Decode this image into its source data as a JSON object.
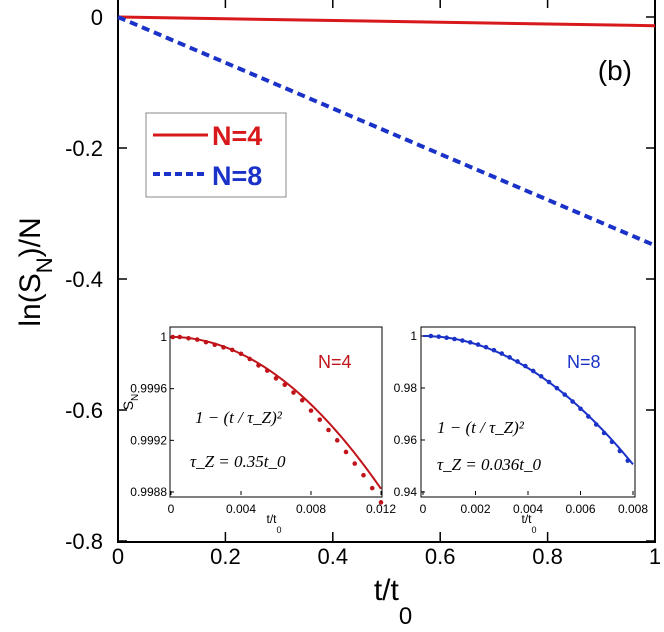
{
  "chart_data": [
    {
      "type": "line",
      "panel_label": "(b)",
      "xlabel": "t/t",
      "xlabel_sub": "0",
      "ylabel": "ln(S",
      "ylabel_sub": "N",
      "ylabel_end": ")/N",
      "xlim": [
        0,
        1
      ],
      "ylim": [
        -0.8,
        0
      ],
      "x_ticks": [
        0,
        0.2,
        0.4,
        0.6,
        0.8,
        1
      ],
      "x_tick_labels": [
        "0",
        "0.2",
        "0.4",
        "0.6",
        "0.8",
        "1"
      ],
      "y_ticks": [
        0,
        -0.2,
        -0.4,
        -0.6,
        -0.8
      ],
      "y_tick_labels": [
        "0",
        "-0.2",
        "-0.4",
        "-0.6",
        "-0.8"
      ],
      "legend_position": "upper-left",
      "series": [
        {
          "name": "N=4",
          "color": "#d7191c",
          "style": "solid",
          "x": [
            0,
            1
          ],
          "y": [
            0,
            -0.0133
          ]
        },
        {
          "name": "N=8",
          "color": "#1a32c8",
          "style": "dashed",
          "x": [
            0,
            1
          ],
          "y": [
            0,
            -0.3488
          ]
        }
      ]
    },
    {
      "type": "line",
      "inset": "left",
      "annotation": "N=4",
      "color": "#c0141a",
      "xlabel": "t/t",
      "xlabel_sub": "0",
      "ylabel": "S",
      "ylabel_sub": "N",
      "formula": "1 − (t / τ_Z)²",
      "tau": "τ_Z = 0.35t_0",
      "xlim": [
        0,
        0.012
      ],
      "ylim": [
        0.9988,
        1
      ],
      "x_ticks": [
        0,
        0.004,
        0.008,
        0.012
      ],
      "x_tick_labels": [
        "0",
        "0.004",
        "0.008",
        "0.012"
      ],
      "y_ticks": [
        0.9988,
        0.9992,
        0.9996,
        1
      ],
      "y_tick_labels": [
        "0.9988",
        "0.9992",
        "0.9996",
        "1"
      ],
      "tau_value": 0.35,
      "points_x": [
        0.0001,
        0.0005,
        0.001,
        0.0015,
        0.002,
        0.0025,
        0.003,
        0.0035,
        0.004,
        0.0045,
        0.005,
        0.0055,
        0.006,
        0.0065,
        0.007,
        0.0075,
        0.008,
        0.0085,
        0.009,
        0.0095,
        0.01,
        0.0105,
        0.011,
        0.0115,
        0.012
      ],
      "points_y": [
        1.0,
        1.0,
        0.99999,
        0.99998,
        0.99996,
        0.99994,
        0.99992,
        0.9999,
        0.99987,
        0.99983,
        0.99978,
        0.99974,
        0.99968,
        0.99963,
        0.99957,
        0.99951,
        0.99943,
        0.99936,
        0.99928,
        0.9992,
        0.99911,
        0.99902,
        0.99893,
        0.99883,
        0.99872
      ]
    },
    {
      "type": "line",
      "inset": "right",
      "annotation": "N=8",
      "color": "#1a32c8",
      "xlabel": "t/t",
      "xlabel_sub": "0",
      "formula": "1 − (t / τ_Z)²",
      "tau": "τ_Z = 0.036t_0",
      "xlim": [
        0,
        0.008
      ],
      "ylim": [
        0.94,
        1
      ],
      "x_ticks": [
        0,
        0.002,
        0.004,
        0.006,
        0.008
      ],
      "x_tick_labels": [
        "0",
        "0.002",
        "0.004",
        "0.006",
        "0.008"
      ],
      "y_ticks": [
        0.94,
        0.96,
        0.98,
        1
      ],
      "y_tick_labels": [
        "0.94",
        "0.96",
        "0.98",
        "1"
      ],
      "tau_value": 0.036,
      "points_x": [
        0.0003,
        0.0006,
        0.0009,
        0.0012,
        0.0015,
        0.0018,
        0.0021,
        0.0024,
        0.0027,
        0.003,
        0.0033,
        0.0036,
        0.0039,
        0.0042,
        0.0045,
        0.0048,
        0.0051,
        0.0054,
        0.0057,
        0.006,
        0.0063,
        0.0066,
        0.0069,
        0.0072,
        0.0075,
        0.0078
      ],
      "points_y": [
        1.0,
        0.99975,
        0.99935,
        0.99885,
        0.99825,
        0.99755,
        0.9967,
        0.9957,
        0.99455,
        0.99325,
        0.9918,
        0.9902,
        0.98845,
        0.98655,
        0.9845,
        0.9823,
        0.97995,
        0.97745,
        0.9748,
        0.972,
        0.96905,
        0.96595,
        0.9627,
        0.9593,
        0.95575,
        0.95205
      ]
    }
  ]
}
